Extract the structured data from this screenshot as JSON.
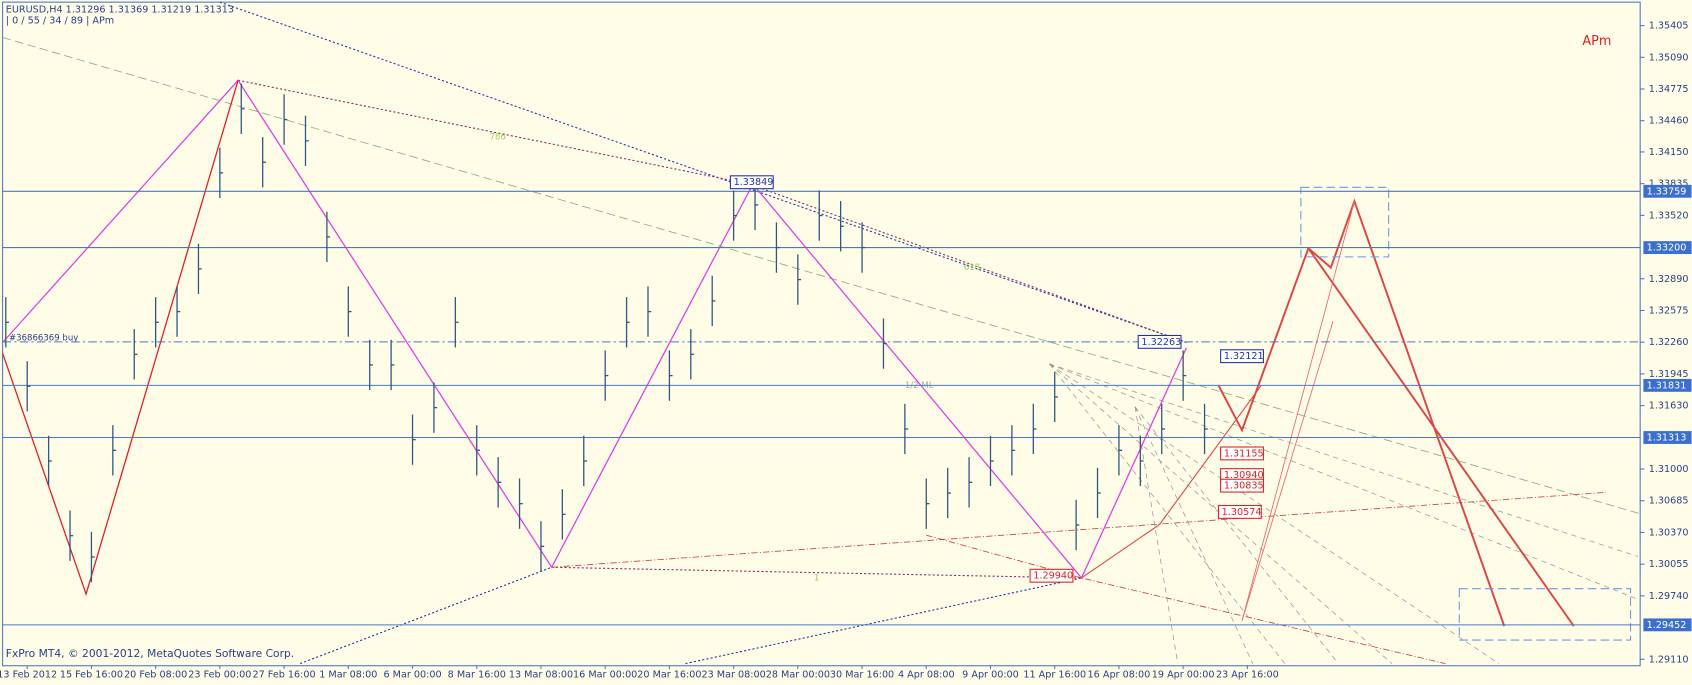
{
  "header": {
    "symbol_line": "EURUSD,H4  1.31296 1.31369 1.31219 1.31313",
    "indicator_line": "| 0 / 55 / 34 / 89 | APm",
    "tag": "APm",
    "copyright": "FxPro MT4, © 2001-2012, MetaQuotes Software Corp.",
    "order_label": "#36866369 buy",
    "fib_labels": [
      "786",
      "618",
      "1/2 ML",
      "1"
    ]
  },
  "chart_data": {
    "type": "ohlc",
    "color": "#2f5583",
    "ylim": [
      1.29046,
      1.35638
    ],
    "yticks": [
      1.35405,
      {
        "value": 1.3509,
        "label": "1.35090"
      },
      1.34775,
      {
        "value": 1.3446,
        "label": "1.34460"
      },
      {
        "value": 1.3415,
        "label": "1.34150"
      },
      1.33835,
      {
        "value": 1.3352,
        "label": "1.33520"
      },
      {
        "value": 1.3289,
        "label": "1.32890"
      },
      1.32575,
      {
        "value": 1.3226,
        "label": "1.32260"
      },
      1.31945,
      {
        "value": 1.3163,
        "label": "1.31630"
      },
      {
        "value": 1.31,
        "label": "1.31000"
      },
      1.30685,
      {
        "value": 1.3037,
        "label": "1.30370"
      },
      1.30055,
      {
        "value": 1.2974,
        "label": "1.29740"
      },
      {
        "value": 1.2911,
        "label": "1.29110"
      }
    ],
    "x_labels": [
      "13 Feb 2012",
      "15 Feb 16:00",
      "20 Feb 08:00",
      "23 Feb 00:00",
      "27 Feb 16:00",
      "1 Mar 08:00",
      "6 Mar 00:00",
      "8 Mar 16:00",
      "13 Mar 08:00",
      "16 Mar 00:00",
      "20 Mar 16:00",
      "23 Mar 08:00",
      "28 Mar 00:00",
      "30 Mar 16:00",
      "4 Apr 08:00",
      "9 Apr 00:00",
      "11 Apr 16:00",
      "16 Apr 08:00",
      "19 Apr 00:00",
      "23 Apr 16:00"
    ],
    "high": [
      1.32708,
      1.32072,
      1.3133,
      1.30588,
      1.30376,
      1.31436,
      1.3239,
      1.32708,
      1.32814,
      1.33238,
      1.34192,
      1.34828,
      1.34298,
      1.34722,
      1.3451,
      1.33556,
      1.32814,
      1.32284,
      1.32284,
      1.31542,
      1.3186,
      1.32708,
      1.31436,
      1.31118,
      1.30906,
      1.30482,
      1.308,
      1.3133,
      1.32178,
      1.32708,
      1.32814,
      1.32178,
      1.3239,
      1.3292,
      1.33768,
      1.33874,
      1.3345,
      1.33132,
      1.33768,
      1.33662,
      1.3345,
      1.32496,
      1.31648,
      1.30906,
      1.31012,
      1.31118,
      1.3133,
      1.31436,
      1.31648,
      1.31966,
      1.30694,
      1.31012,
      1.31436,
      1.3133,
      1.31648,
      1.32178,
      1.31648
    ],
    "low": [
      1.32208,
      1.31572,
      1.3083,
      1.30088,
      1.29876,
      1.30936,
      1.3189,
      1.32208,
      1.32314,
      1.32738,
      1.33692,
      1.34328,
      1.33798,
      1.34222,
      1.3401,
      1.33056,
      1.32314,
      1.31784,
      1.31784,
      1.31042,
      1.3136,
      1.32208,
      1.30936,
      1.30618,
      1.30406,
      1.29982,
      1.303,
      1.3083,
      1.31678,
      1.32208,
      1.32314,
      1.31678,
      1.3189,
      1.3242,
      1.33268,
      1.33374,
      1.3295,
      1.32632,
      1.33268,
      1.33162,
      1.3295,
      1.31996,
      1.31148,
      1.30406,
      1.30512,
      1.30618,
      1.3083,
      1.30936,
      1.31148,
      1.31466,
      1.30194,
      1.30512,
      1.30936,
      1.3083,
      1.31148,
      1.31678,
      1.31148
    ],
    "close": [
      1.32458,
      1.31822,
      1.3108,
      1.30338,
      1.30126,
      1.31186,
      1.3214,
      1.32458,
      1.32564,
      1.32988,
      1.33942,
      1.34578,
      1.34048,
      1.34472,
      1.3426,
      1.33306,
      1.32564,
      1.32034,
      1.32034,
      1.31292,
      1.3161,
      1.32458,
      1.31186,
      1.30868,
      1.30656,
      1.30232,
      1.3055,
      1.3108,
      1.31928,
      1.32458,
      1.32564,
      1.31928,
      1.3214,
      1.3267,
      1.33518,
      1.33624,
      1.332,
      1.32882,
      1.33518,
      1.33412,
      1.332,
      1.32246,
      1.31398,
      1.30656,
      1.30762,
      1.30868,
      1.3108,
      1.31186,
      1.31398,
      1.31716,
      1.30444,
      1.30762,
      1.31186,
      1.3108,
      1.31398,
      1.31928,
      1.31398
    ],
    "levels": [
      1.33759,
      {
        "value": 1.332,
        "label": "1.33200"
      },
      1.31831,
      1.31313,
      1.29452
    ],
    "order_level": 1.32263,
    "blue_labels": [
      1.33849,
      1.32263,
      1.32121
    ],
    "red_labels": [
      1.31155,
      {
        "value": 1.3094,
        "label": "1.30940"
      },
      1.30835,
      1.30574,
      {
        "value": 1.2994,
        "label": "1.29940"
      }
    ]
  }
}
